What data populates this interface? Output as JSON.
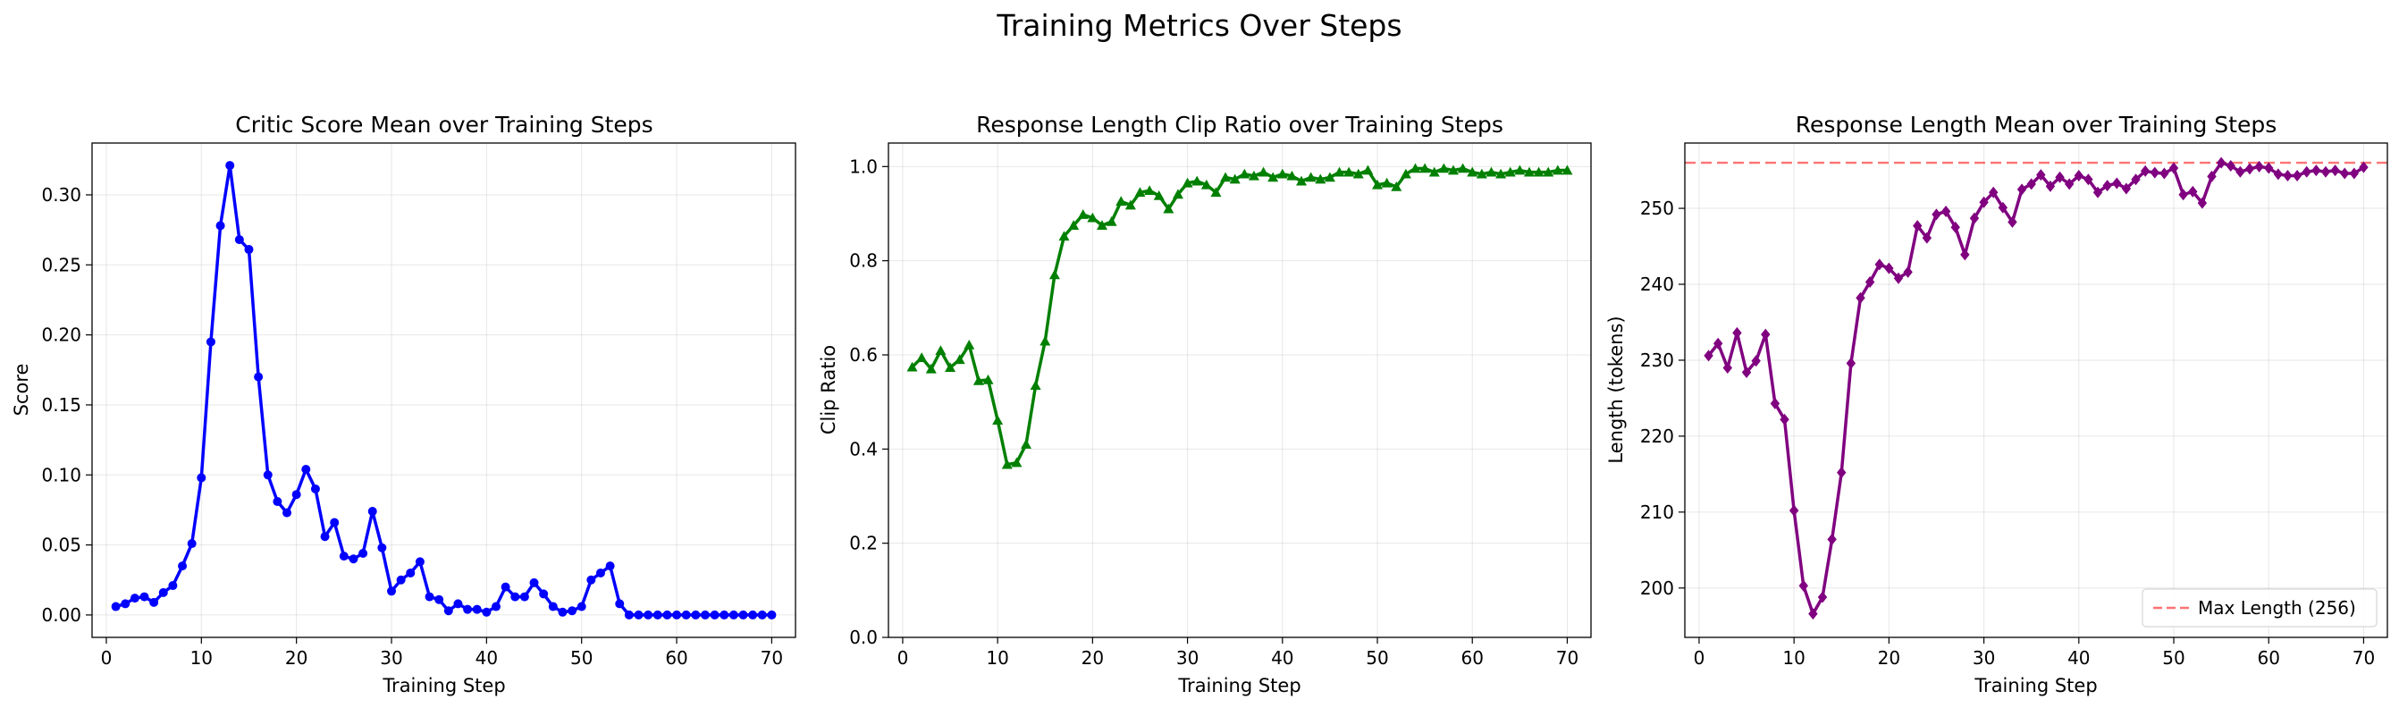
{
  "figure": {
    "suptitle": "Training Metrics Over Steps"
  },
  "chart_data": [
    {
      "type": "line",
      "title": "Critic Score Mean over Training Steps",
      "xlabel": "Training Step",
      "ylabel": "Score",
      "xlim": [
        -1.5,
        72.5
      ],
      "ylim": [
        -0.016,
        0.337
      ],
      "xticks": [
        0,
        10,
        20,
        30,
        40,
        50,
        60,
        70
      ],
      "yticks": [
        0.0,
        0.05,
        0.1,
        0.15,
        0.2,
        0.25,
        0.3
      ],
      "ytick_labels": [
        "0.00",
        "0.05",
        "0.10",
        "0.15",
        "0.20",
        "0.25",
        "0.30"
      ],
      "grid": true,
      "series": [
        {
          "color": "#0000ff",
          "marker": "circle",
          "x": [
            1,
            2,
            3,
            4,
            5,
            6,
            7,
            8,
            9,
            10,
            11,
            12,
            13,
            14,
            15,
            16,
            17,
            18,
            19,
            20,
            21,
            22,
            23,
            24,
            25,
            26,
            27,
            28,
            29,
            30,
            31,
            32,
            33,
            34,
            35,
            36,
            37,
            38,
            39,
            40,
            41,
            42,
            43,
            44,
            45,
            46,
            47,
            48,
            49,
            50,
            51,
            52,
            53,
            54,
            55,
            56,
            57,
            58,
            59,
            60,
            61,
            62,
            63,
            64,
            65,
            66,
            67,
            68,
            69,
            70
          ],
          "y": [
            0.006,
            0.008,
            0.012,
            0.013,
            0.009,
            0.016,
            0.021,
            0.035,
            0.051,
            0.098,
            0.195,
            0.278,
            0.321,
            0.268,
            0.261,
            0.17,
            0.1,
            0.081,
            0.073,
            0.086,
            0.104,
            0.09,
            0.056,
            0.066,
            0.042,
            0.04,
            0.044,
            0.074,
            0.048,
            0.017,
            0.025,
            0.03,
            0.038,
            0.013,
            0.011,
            0.003,
            0.008,
            0.004,
            0.004,
            0.002,
            0.006,
            0.02,
            0.013,
            0.013,
            0.023,
            0.015,
            0.006,
            0.002,
            0.003,
            0.006,
            0.025,
            0.03,
            0.035,
            0.008,
            0.0,
            0.0,
            0.0,
            0.0,
            0.0,
            0.0,
            0.0,
            0.0,
            0.0,
            0.0,
            0.0,
            0.0,
            0.0,
            0.0,
            0.0,
            0.0
          ]
        }
      ]
    },
    {
      "type": "line",
      "title": "Response Length Clip Ratio over Training Steps",
      "xlabel": "Training Step",
      "ylabel": "Clip Ratio",
      "xlim": [
        -1.5,
        72.5
      ],
      "ylim": [
        0.0,
        1.05
      ],
      "xticks": [
        0,
        10,
        20,
        30,
        40,
        50,
        60,
        70
      ],
      "yticks": [
        0.0,
        0.2,
        0.4,
        0.6,
        0.8,
        1.0
      ],
      "ytick_labels": [
        "0.0",
        "0.2",
        "0.4",
        "0.6",
        "0.8",
        "1.0"
      ],
      "grid": true,
      "series": [
        {
          "color": "#008000",
          "marker": "triangle",
          "x": [
            1,
            2,
            3,
            4,
            5,
            6,
            7,
            8,
            9,
            10,
            11,
            12,
            13,
            14,
            15,
            16,
            17,
            18,
            19,
            20,
            21,
            22,
            23,
            24,
            25,
            26,
            27,
            28,
            29,
            30,
            31,
            32,
            33,
            34,
            35,
            36,
            37,
            38,
            39,
            40,
            41,
            42,
            43,
            44,
            45,
            46,
            47,
            48,
            49,
            50,
            51,
            52,
            53,
            54,
            55,
            56,
            57,
            58,
            59,
            60,
            61,
            62,
            63,
            64,
            65,
            66,
            67,
            68,
            69,
            70
          ],
          "y": [
            0.574,
            0.594,
            0.57,
            0.609,
            0.573,
            0.59,
            0.621,
            0.545,
            0.547,
            0.461,
            0.367,
            0.371,
            0.41,
            0.535,
            0.629,
            0.77,
            0.852,
            0.875,
            0.898,
            0.891,
            0.875,
            0.883,
            0.926,
            0.918,
            0.945,
            0.949,
            0.938,
            0.91,
            0.941,
            0.965,
            0.969,
            0.961,
            0.945,
            0.977,
            0.973,
            0.984,
            0.98,
            0.988,
            0.977,
            0.984,
            0.98,
            0.969,
            0.977,
            0.973,
            0.977,
            0.988,
            0.988,
            0.984,
            0.992,
            0.961,
            0.965,
            0.957,
            0.984,
            0.996,
            0.996,
            0.988,
            0.996,
            0.992,
            0.996,
            0.988,
            0.984,
            0.988,
            0.984,
            0.988,
            0.992,
            0.988,
            0.988,
            0.988,
            0.992,
            0.992
          ]
        }
      ]
    },
    {
      "type": "line",
      "title": "Response Length Mean over Training Steps",
      "xlabel": "Training Step",
      "ylabel": "Length (tokens)",
      "xlim": [
        -1.5,
        72.5
      ],
      "ylim": [
        193.5,
        258.6
      ],
      "xticks": [
        0,
        10,
        20,
        30,
        40,
        50,
        60,
        70
      ],
      "yticks": [
        200,
        210,
        220,
        230,
        240,
        250
      ],
      "ytick_labels": [
        "200",
        "210",
        "220",
        "230",
        "240",
        "250"
      ],
      "grid": true,
      "reference_line": {
        "y": 256,
        "label": "Max Length (256)",
        "color": "#ff0000",
        "style": "dashed"
      },
      "legend": {
        "location": "bottom-right",
        "entries": [
          "Max Length (256)"
        ]
      },
      "series": [
        {
          "color": "#800080",
          "marker": "diamond",
          "x": [
            1,
            2,
            3,
            4,
            5,
            6,
            7,
            8,
            9,
            10,
            11,
            12,
            13,
            14,
            15,
            16,
            17,
            18,
            19,
            20,
            21,
            22,
            23,
            24,
            25,
            26,
            27,
            28,
            29,
            30,
            31,
            32,
            33,
            34,
            35,
            36,
            37,
            38,
            39,
            40,
            41,
            42,
            43,
            44,
            45,
            46,
            47,
            48,
            49,
            50,
            51,
            52,
            53,
            54,
            55,
            56,
            57,
            58,
            59,
            60,
            61,
            62,
            63,
            64,
            65,
            66,
            67,
            68,
            69,
            70
          ],
          "y": [
            230.6,
            232.2,
            229.0,
            233.6,
            228.4,
            229.9,
            233.4,
            224.3,
            222.2,
            210.2,
            200.3,
            196.6,
            198.8,
            206.4,
            215.2,
            229.6,
            238.2,
            240.3,
            242.6,
            242.1,
            240.8,
            241.6,
            247.7,
            246.1,
            249.2,
            249.6,
            247.5,
            243.9,
            248.7,
            250.8,
            252.1,
            250.1,
            248.2,
            252.5,
            253.2,
            254.4,
            252.9,
            254.1,
            253.2,
            254.3,
            253.8,
            252.1,
            253.0,
            253.3,
            252.6,
            253.8,
            254.9,
            254.7,
            254.6,
            255.3,
            251.8,
            252.2,
            250.7,
            254.2,
            256.0,
            255.6,
            254.8,
            255.2,
            255.5,
            255.3,
            254.5,
            254.3,
            254.3,
            254.8,
            255.0,
            254.8,
            255.0,
            254.6,
            254.6,
            255.4
          ]
        }
      ]
    }
  ]
}
